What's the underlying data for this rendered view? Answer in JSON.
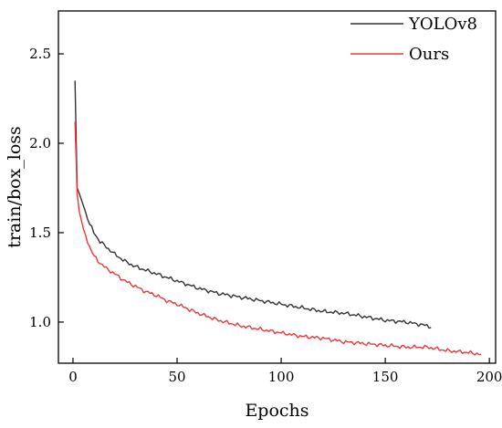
{
  "chart_data": {
    "type": "line",
    "xlabel": "Epochs",
    "ylabel": "train/box_loss",
    "xlim": [
      -7,
      203
    ],
    "ylim": [
      0.77,
      2.74
    ],
    "xticks": [
      0,
      50,
      100,
      150,
      200
    ],
    "yticks": [
      1.0,
      1.5,
      2.0,
      2.5
    ],
    "xtick_labels": [
      "0",
      "50",
      "100",
      "150",
      "200"
    ],
    "ytick_labels": [
      "1.0",
      "1.5",
      "2.0",
      "2.5"
    ],
    "grid": false,
    "legend_position": "top-right",
    "series": [
      {
        "name": "YOLOv8",
        "color": "#333333",
        "x": [
          1,
          2,
          3,
          5,
          8,
          10,
          13,
          16,
          20,
          25,
          30,
          35,
          40,
          45,
          50,
          60,
          70,
          80,
          90,
          100,
          110,
          120,
          130,
          140,
          150,
          160,
          165,
          170,
          172
        ],
        "y": [
          2.35,
          1.75,
          1.72,
          1.65,
          1.55,
          1.5,
          1.45,
          1.42,
          1.38,
          1.34,
          1.31,
          1.29,
          1.27,
          1.25,
          1.23,
          1.19,
          1.16,
          1.14,
          1.12,
          1.1,
          1.08,
          1.06,
          1.05,
          1.03,
          1.01,
          1.0,
          0.99,
          0.98,
          0.97
        ]
      },
      {
        "name": "Ours",
        "color": "#e8393b",
        "x": [
          1,
          2,
          3,
          5,
          8,
          10,
          13,
          16,
          20,
          25,
          30,
          35,
          40,
          45,
          50,
          60,
          70,
          80,
          90,
          100,
          110,
          120,
          130,
          140,
          150,
          160,
          170,
          180,
          190,
          196
        ],
        "y": [
          2.12,
          1.72,
          1.62,
          1.52,
          1.42,
          1.37,
          1.33,
          1.3,
          1.27,
          1.23,
          1.2,
          1.17,
          1.15,
          1.12,
          1.1,
          1.05,
          1.01,
          0.98,
          0.96,
          0.94,
          0.92,
          0.91,
          0.89,
          0.88,
          0.87,
          0.86,
          0.86,
          0.84,
          0.83,
          0.82
        ]
      }
    ]
  }
}
